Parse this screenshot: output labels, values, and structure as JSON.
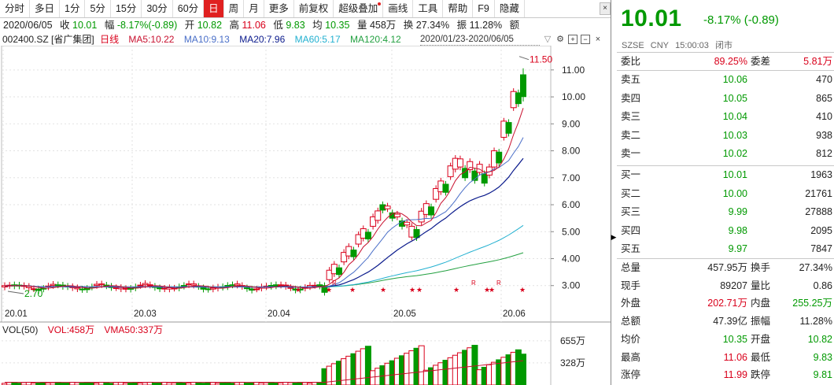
{
  "toolbar": {
    "buttons": [
      "分时",
      "多日",
      "1分",
      "5分",
      "15分",
      "30分",
      "60分",
      "日",
      "周",
      "月",
      "更多",
      "前复权",
      "超级叠加",
      "画线",
      "工具",
      "帮助",
      "F9",
      "隐藏"
    ],
    "active_index": 7,
    "dot_index": 12,
    "close_glyph": "×"
  },
  "infobar": {
    "date": "2020/06/05",
    "close_label": "收",
    "close_value": "10.01",
    "amp_label": "幅",
    "amp_value": "-8.17%(-0.89)",
    "open_label": "开",
    "open_value": "10.82",
    "high_label": "高",
    "high_value": "11.06",
    "low_label": "低",
    "low_value": "9.83",
    "avg_label": "均",
    "avg_value": "10.35",
    "vol_label": "量",
    "vol_value": "458万",
    "turnover_label": "换",
    "turnover_value": "27.34%",
    "swing_label": "振",
    "swing_value": "11.28%",
    "amount_label": "额"
  },
  "mabar": {
    "code": "002400.SZ [省广集团]",
    "period": "日线",
    "ma5": "MA5:10.22",
    "ma10": "MA10:9.13",
    "ma20": "MA20:7.96",
    "ma60": "MA60:5.17",
    "ma120": "MA120:4.12",
    "range": "2020/01/23-2020/06/05"
  },
  "colors": {
    "up": "#d9001b",
    "down": "#009900",
    "ma5": "#c8102e",
    "ma10": "#4a6fc8",
    "ma20": "#0a1a8c",
    "ma60": "#22b0d0",
    "ma120": "#22a040"
  },
  "chart_data": {
    "type": "candlestick",
    "y_ticks": [
      "11.00",
      "10.00",
      "9.00",
      "8.00",
      "7.00",
      "6.00",
      "5.00",
      "4.00",
      "3.00"
    ],
    "y_range": [
      2.35,
      11.9
    ],
    "x_ticks": [
      "20.01",
      "20.03",
      "20.04",
      "20.05",
      "20.06"
    ],
    "annotations": {
      "high": "11.50",
      "low": "2.70"
    },
    "star_glyph": "★",
    "r_glyph": "R",
    "volume": {
      "label": "VOL(50)",
      "vol": "VOL:458万",
      "vma": "VMA50:337万",
      "ticks": [
        "655万",
        "328万"
      ]
    }
  },
  "quote": {
    "price": "10.01",
    "change": "-8.17% (-0.89)",
    "exchange": "SZSE",
    "currency": "CNY",
    "time": "15:00:03",
    "status": "闭市",
    "weibi_label": "委比",
    "weibi_value": "89.25%",
    "weicha_label": "委差",
    "weicha_value": "5.81万",
    "asks": [
      {
        "label": "卖五",
        "price": "10.06",
        "vol": "470"
      },
      {
        "label": "卖四",
        "price": "10.05",
        "vol": "865"
      },
      {
        "label": "卖三",
        "price": "10.04",
        "vol": "410"
      },
      {
        "label": "卖二",
        "price": "10.03",
        "vol": "938"
      },
      {
        "label": "卖一",
        "price": "10.02",
        "vol": "812"
      }
    ],
    "bids": [
      {
        "label": "买一",
        "price": "10.01",
        "vol": "1963"
      },
      {
        "label": "买二",
        "price": "10.00",
        "vol": "21761"
      },
      {
        "label": "买三",
        "price": "9.99",
        "vol": "27888"
      },
      {
        "label": "买四",
        "price": "9.98",
        "vol": "2095"
      },
      {
        "label": "买五",
        "price": "9.97",
        "vol": "7847"
      }
    ],
    "stats": [
      {
        "l1": "总量",
        "v1": "457.95万",
        "l2": "换手",
        "v2": "27.34%",
        "c1": "black",
        "c2": "black"
      },
      {
        "l1": "现手",
        "v1": "89207",
        "l2": "量比",
        "v2": "0.86",
        "c1": "black",
        "c2": "black"
      },
      {
        "l1": "外盘",
        "v1": "202.71万",
        "l2": "内盘",
        "v2": "255.25万",
        "c1": "red",
        "c2": "green"
      },
      {
        "l1": "总额",
        "v1": "47.39亿",
        "l2": "振幅",
        "v2": "11.28%",
        "c1": "black",
        "c2": "black"
      },
      {
        "l1": "均价",
        "v1": "10.35",
        "l2": "开盘",
        "v2": "10.82",
        "c1": "green",
        "c2": "green"
      },
      {
        "l1": "最高",
        "v1": "11.06",
        "l2": "最低",
        "v2": "9.83",
        "c1": "red",
        "c2": "green"
      },
      {
        "l1": "涨停",
        "v1": "11.99",
        "l2": "跌停",
        "v2": "9.81",
        "c1": "red",
        "c2": "green"
      }
    ]
  }
}
